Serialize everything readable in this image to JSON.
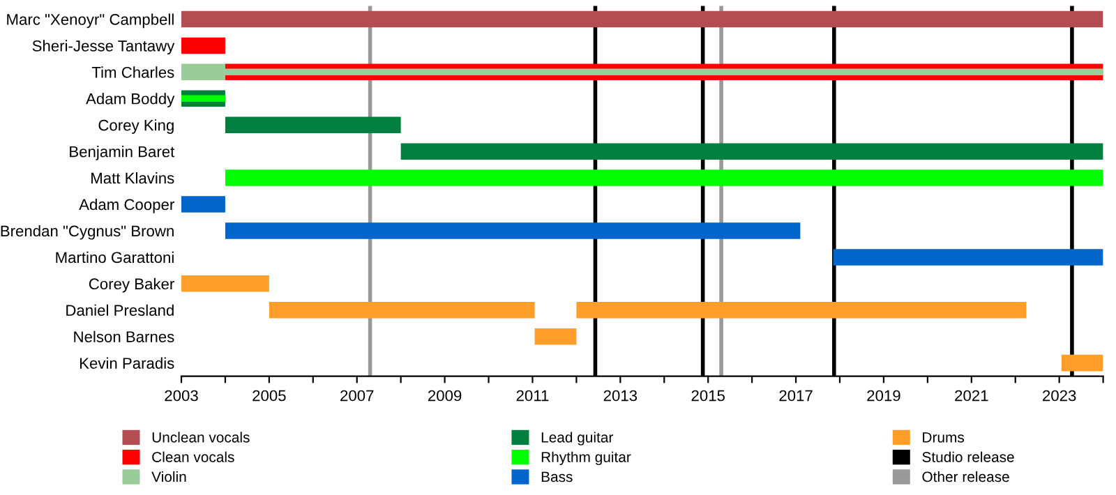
{
  "chart_data": {
    "type": "bar",
    "orientation": "horizontal",
    "categories": [
      "Marc \"Xenoyr\" Campbell",
      "Sheri-Jesse Tantawy",
      "Tim Charles",
      "Adam Boddy",
      "Corey King",
      "Benjamin Baret",
      "Matt Klavins",
      "Adam Cooper",
      "Brendan \"Cygnus\" Brown",
      "Martino Garattoni",
      "Corey Baker",
      "Daniel Presland",
      "Nelson Barnes",
      "Kevin Paradis"
    ],
    "series": [
      {
        "name": "Unclean vocals",
        "color": "#b24d52",
        "base": [
          2003,
          null,
          null,
          null,
          null,
          null,
          null,
          null,
          null,
          null,
          null,
          null,
          null,
          null
        ],
        "values": [
          21,
          null,
          null,
          null,
          null,
          null,
          null,
          null,
          null,
          null,
          null,
          null,
          null,
          null
        ]
      },
      {
        "name": "Clean vocals",
        "color": "#ff0000",
        "base": [
          null,
          2003,
          2004,
          null,
          null,
          null,
          null,
          null,
          null,
          null,
          null,
          null,
          null,
          null
        ],
        "values": [
          null,
          1,
          20,
          null,
          null,
          null,
          null,
          null,
          null,
          null,
          null,
          null,
          null,
          null
        ]
      },
      {
        "name": "Violin",
        "color": "#99cc99",
        "base": [
          null,
          null,
          2003,
          null,
          null,
          null,
          null,
          null,
          null,
          null,
          null,
          null,
          null,
          null
        ],
        "values": [
          null,
          null,
          1,
          null,
          null,
          null,
          null,
          null,
          null,
          null,
          null,
          null,
          null,
          null
        ]
      },
      {
        "name": "Lead guitar",
        "color": "#007f3f",
        "base": [
          null,
          null,
          null,
          2003,
          2004,
          2008,
          null,
          null,
          null,
          null,
          null,
          null,
          null,
          null
        ],
        "values": [
          null,
          null,
          null,
          1,
          4,
          16,
          null,
          null,
          null,
          null,
          null,
          null,
          null,
          null
        ]
      },
      {
        "name": "Rhythm guitar",
        "color": "#00ff00",
        "base": [
          null,
          null,
          null,
          2003,
          null,
          null,
          2004,
          null,
          null,
          null,
          null,
          null,
          null,
          null
        ],
        "values": [
          null,
          null,
          null,
          1,
          null,
          null,
          20,
          null,
          null,
          null,
          null,
          null,
          null,
          null
        ]
      },
      {
        "name": "Bass",
        "color": "#0066cc",
        "base": [
          null,
          null,
          null,
          null,
          null,
          null,
          null,
          2003,
          2004,
          2017.85,
          null,
          null,
          null,
          null
        ],
        "values": [
          null,
          null,
          null,
          null,
          null,
          null,
          null,
          1,
          13.1,
          6.15,
          null,
          null,
          null,
          null
        ]
      },
      {
        "name": "Drums",
        "color": "#ff9f2a",
        "base": [
          null,
          null,
          null,
          null,
          null,
          null,
          null,
          null,
          null,
          null,
          2003,
          2005,
          2011.05,
          2023.05
        ],
        "values": [
          null,
          null,
          null,
          null,
          null,
          null,
          null,
          null,
          null,
          null,
          2,
          6.05,
          0.95,
          0.95
        ]
      },
      {
        "color": "#99cc99",
        "base": [
          null,
          null,
          2004,
          null,
          null,
          null,
          null,
          null,
          null,
          null,
          null,
          null,
          null,
          null
        ],
        "values": [
          null,
          null,
          20,
          null,
          null,
          null,
          null,
          null,
          null,
          null,
          null,
          null,
          null,
          null
        ]
      },
      {
        "color": "#ff9f2a",
        "base": [
          null,
          null,
          null,
          null,
          null,
          null,
          null,
          null,
          null,
          null,
          null,
          2012,
          null,
          null
        ],
        "values": [
          null,
          null,
          null,
          null,
          null,
          null,
          null,
          null,
          null,
          null,
          null,
          10.25,
          null,
          null
        ]
      }
    ],
    "xlim": [
      2003,
      2024
    ],
    "xticks": [
      2003,
      {
        "value": 2004,
        "label": null
      },
      2005,
      {
        "value": 2006,
        "label": null
      },
      2007,
      {
        "value": 2008,
        "label": null
      },
      2009,
      {
        "value": 2010,
        "label": null
      },
      2011,
      {
        "value": 2012,
        "label": null
      },
      2013,
      {
        "value": 2014,
        "label": null
      },
      2015,
      {
        "value": 2016,
        "label": null
      },
      2017,
      {
        "value": 2018,
        "label": null
      },
      2019,
      {
        "value": 2020,
        "label": null
      },
      2021,
      {
        "value": 2022,
        "label": null
      },
      2023,
      {
        "value": 2024,
        "label": null
      }
    ],
    "ref_lines": [
      {
        "axis": "x",
        "value": 2012.43,
        "label": "Studio release",
        "color": "#000000"
      },
      {
        "axis": "x",
        "value": 2014.88,
        "color": "#000000"
      },
      {
        "axis": "x",
        "value": 2017.87,
        "color": "#000000"
      },
      {
        "axis": "x",
        "value": 2023.29,
        "color": "#000000"
      },
      {
        "axis": "x",
        "value": 2007.3,
        "label": "Other release",
        "color": "#999999"
      },
      {
        "axis": "x",
        "value": 2015.3,
        "color": "#999999"
      }
    ],
    "legend": "bottom",
    "grid": false
  }
}
